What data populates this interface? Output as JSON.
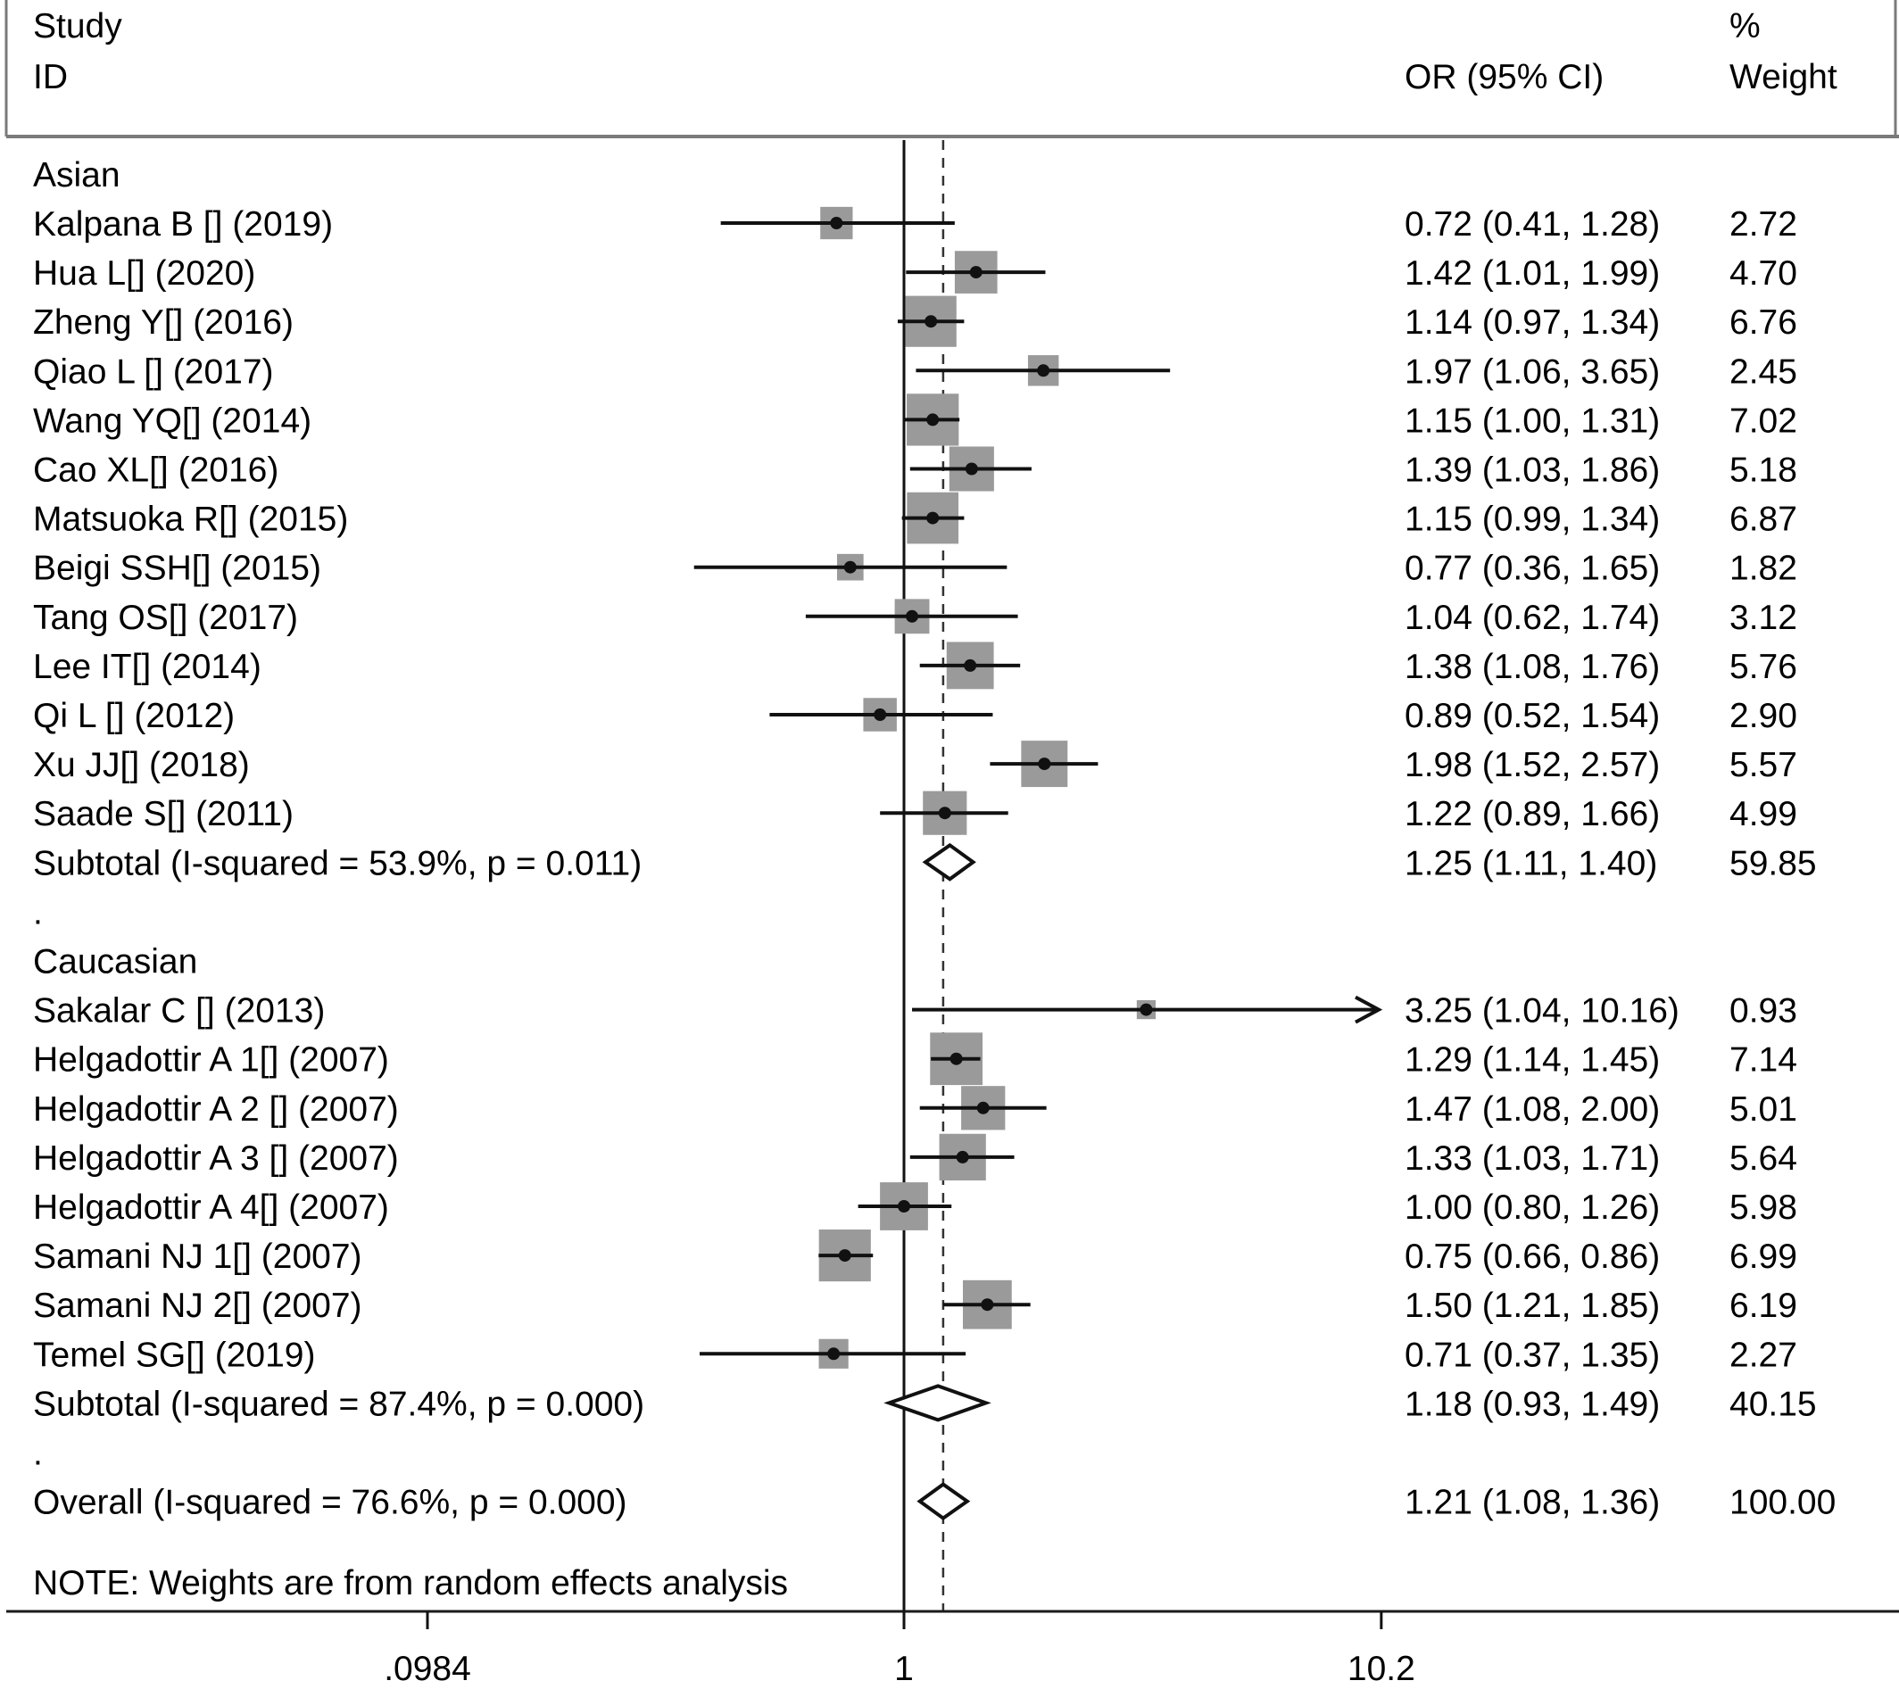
{
  "headers": {
    "study_line1": "Study",
    "study_line2": "ID",
    "or": "OR (95% CI)",
    "weight_line1": "%",
    "weight_line2": "Weight"
  },
  "note": "NOTE: Weights are from random effects analysis",
  "chart_data": {
    "type": "forest",
    "x_scale": "log",
    "x_ticks": [
      0.0984,
      1,
      10.2
    ],
    "x_tick_labels": [
      ".0984",
      "1",
      "10.2"
    ],
    "null_line": 1,
    "overall_line": 1.21,
    "rows": [
      {
        "kind": "group",
        "label": "Asian"
      },
      {
        "kind": "study",
        "label": "Kalpana B [] (2019)",
        "or": 0.72,
        "lo": 0.41,
        "hi": 1.28,
        "text": "0.72 (0.41, 1.28)",
        "weight": 2.72,
        "weight_text": "2.72"
      },
      {
        "kind": "study",
        "label": "Hua L[] (2020)",
        "or": 1.42,
        "lo": 1.01,
        "hi": 1.99,
        "text": "1.42 (1.01, 1.99)",
        "weight": 4.7,
        "weight_text": "4.70"
      },
      {
        "kind": "study",
        "label": "Zheng Y[] (2016)",
        "or": 1.14,
        "lo": 0.97,
        "hi": 1.34,
        "text": "1.14 (0.97, 1.34)",
        "weight": 6.76,
        "weight_text": "6.76"
      },
      {
        "kind": "study",
        "label": "Qiao L [] (2017)",
        "or": 1.97,
        "lo": 1.06,
        "hi": 3.65,
        "text": "1.97 (1.06, 3.65)",
        "weight": 2.45,
        "weight_text": "2.45"
      },
      {
        "kind": "study",
        "label": "Wang YQ[] (2014)",
        "or": 1.15,
        "lo": 1.0,
        "hi": 1.31,
        "text": "1.15 (1.00, 1.31)",
        "weight": 7.02,
        "weight_text": "7.02"
      },
      {
        "kind": "study",
        "label": "Cao XL[] (2016)",
        "or": 1.39,
        "lo": 1.03,
        "hi": 1.86,
        "text": "1.39 (1.03, 1.86)",
        "weight": 5.18,
        "weight_text": "5.18"
      },
      {
        "kind": "study",
        "label": "Matsuoka R[] (2015)",
        "or": 1.15,
        "lo": 0.99,
        "hi": 1.34,
        "text": "1.15 (0.99, 1.34)",
        "weight": 6.87,
        "weight_text": "6.87"
      },
      {
        "kind": "study",
        "label": "Beigi SSH[]  (2015)",
        "or": 0.77,
        "lo": 0.36,
        "hi": 1.65,
        "text": "0.77 (0.36, 1.65)",
        "weight": 1.82,
        "weight_text": "1.82"
      },
      {
        "kind": "study",
        "label": "Tang OS[] (2017)",
        "or": 1.04,
        "lo": 0.62,
        "hi": 1.74,
        "text": "1.04 (0.62, 1.74)",
        "weight": 3.12,
        "weight_text": "3.12"
      },
      {
        "kind": "study",
        "label": "Lee IT[] (2014)",
        "or": 1.38,
        "lo": 1.08,
        "hi": 1.76,
        "text": "1.38 (1.08, 1.76)",
        "weight": 5.76,
        "weight_text": "5.76"
      },
      {
        "kind": "study",
        "label": "Qi L [] (2012)",
        "or": 0.89,
        "lo": 0.52,
        "hi": 1.54,
        "text": "0.89 (0.52, 1.54)",
        "weight": 2.9,
        "weight_text": "2.90"
      },
      {
        "kind": "study",
        "label": "Xu JJ[] (2018)",
        "or": 1.98,
        "lo": 1.52,
        "hi": 2.57,
        "text": "1.98 (1.52, 2.57)",
        "weight": 5.57,
        "weight_text": "5.57"
      },
      {
        "kind": "study",
        "label": "Saade S[] (2011)",
        "or": 1.22,
        "lo": 0.89,
        "hi": 1.66,
        "text": "1.22 (0.89, 1.66)",
        "weight": 4.99,
        "weight_text": "4.99"
      },
      {
        "kind": "subtotal",
        "label": "Subtotal  (I-squared = 53.9%, p = 0.011)",
        "or": 1.25,
        "lo": 1.11,
        "hi": 1.4,
        "text": "1.25 (1.11, 1.40)",
        "weight": 59.85,
        "weight_text": "59.85"
      },
      {
        "kind": "spacer",
        "label": "."
      },
      {
        "kind": "group",
        "label": "Caucasian"
      },
      {
        "kind": "study",
        "label": "Sakalar C [] (2013)",
        "or": 3.25,
        "lo": 1.04,
        "hi": 10.16,
        "text": "3.25 (1.04, 10.16)",
        "weight": 0.93,
        "weight_text": "0.93",
        "arrow": true
      },
      {
        "kind": "study",
        "label": "Helgadottir A 1[] (2007)",
        "or": 1.29,
        "lo": 1.14,
        "hi": 1.45,
        "text": "1.29 (1.14, 1.45)",
        "weight": 7.14,
        "weight_text": "7.14"
      },
      {
        "kind": "study",
        "label": "Helgadottir A 2 [] (2007)",
        "or": 1.47,
        "lo": 1.08,
        "hi": 2.0,
        "text": "1.47 (1.08, 2.00)",
        "weight": 5.01,
        "weight_text": "5.01"
      },
      {
        "kind": "study",
        "label": "Helgadottir A 3 [] (2007)",
        "or": 1.33,
        "lo": 1.03,
        "hi": 1.71,
        "text": "1.33 (1.03, 1.71)",
        "weight": 5.64,
        "weight_text": "5.64"
      },
      {
        "kind": "study",
        "label": "Helgadottir A 4[] (2007)",
        "or": 1.0,
        "lo": 0.8,
        "hi": 1.26,
        "text": "1.00 (0.80, 1.26)",
        "weight": 5.98,
        "weight_text": "5.98"
      },
      {
        "kind": "study",
        "label": "Samani NJ 1[] (2007)",
        "or": 0.75,
        "lo": 0.66,
        "hi": 0.86,
        "text": "0.75 (0.66, 0.86)",
        "weight": 6.99,
        "weight_text": "6.99"
      },
      {
        "kind": "study",
        "label": "Samani NJ 2[] (2007)",
        "or": 1.5,
        "lo": 1.21,
        "hi": 1.85,
        "text": "1.50 (1.21, 1.85)",
        "weight": 6.19,
        "weight_text": "6.19"
      },
      {
        "kind": "study",
        "label": "Temel SG[] (2019)",
        "or": 0.71,
        "lo": 0.37,
        "hi": 1.35,
        "text": "0.71 (0.37, 1.35)",
        "weight": 2.27,
        "weight_text": "2.27"
      },
      {
        "kind": "subtotal",
        "label": "Subtotal  (I-squared = 87.4%, p = 0.000)",
        "or": 1.18,
        "lo": 0.93,
        "hi": 1.49,
        "text": "1.18 (0.93, 1.49)",
        "weight": 40.15,
        "weight_text": "40.15"
      },
      {
        "kind": "spacer",
        "label": "."
      },
      {
        "kind": "overall",
        "label": "Overall  (I-squared = 76.6%, p = 0.000)",
        "or": 1.21,
        "lo": 1.08,
        "hi": 1.36,
        "text": "1.21 (1.08, 1.36)",
        "weight": 100.0,
        "weight_text": "100.00"
      }
    ]
  }
}
